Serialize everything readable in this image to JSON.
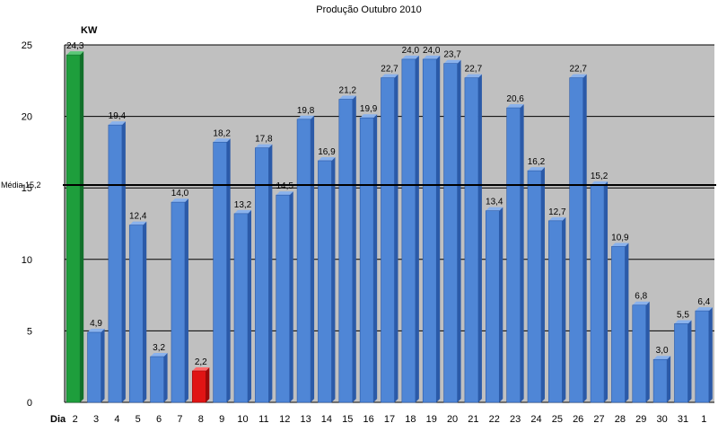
{
  "chart_data": {
    "type": "bar",
    "title": "Produção Outubro 2010",
    "ylabel": "KW",
    "xlabel": "Dia",
    "categories": [
      "2",
      "3",
      "4",
      "5",
      "6",
      "7",
      "8",
      "9",
      "10",
      "11",
      "12",
      "13",
      "14",
      "15",
      "16",
      "17",
      "18",
      "19",
      "20",
      "21",
      "22",
      "23",
      "24",
      "25",
      "26",
      "27",
      "28",
      "29",
      "30",
      "31",
      "1"
    ],
    "values": [
      24.3,
      4.9,
      19.4,
      12.4,
      3.2,
      14.0,
      2.2,
      18.2,
      13.2,
      17.8,
      14.5,
      19.8,
      16.9,
      21.2,
      19.9,
      22.7,
      24.0,
      24.0,
      23.7,
      22.7,
      13.4,
      20.6,
      16.2,
      12.7,
      22.7,
      15.2,
      10.9,
      6.8,
      3.0,
      5.5,
      6.4
    ],
    "data_labels": [
      "24,3",
      "4,9",
      "19,4",
      "12,4",
      "3,2",
      "14,0",
      "2,2",
      "18,2",
      "13,2",
      "17,8",
      "14,5",
      "19,8",
      "16,9",
      "21,2",
      "19,9",
      "22,7",
      "24,0",
      "24,0",
      "23,7",
      "22,7",
      "13,4",
      "20,6",
      "16,2",
      "12,7",
      "22,7",
      "15,2",
      "10,9",
      "6,8",
      "3,0",
      "5,5",
      "6,4"
    ],
    "ylim": [
      0,
      25
    ],
    "yticks": [
      0,
      5,
      10,
      15,
      20,
      25
    ],
    "grid": true,
    "average": {
      "value": 15.2,
      "label": "Média 15,2"
    },
    "colors": {
      "bar": "#4f86d6",
      "bar_side": "#2b5aa8",
      "bar_top": "#8ab2ec",
      "max": "#1e9e3c",
      "max_side": "#11702a",
      "max_top": "#5cc878",
      "min": "#e01414",
      "min_side": "#9a0a0a",
      "min_top": "#ff6a6a",
      "plot_bg": "#c0c0c0",
      "average_line": "#000000"
    },
    "highlight": {
      "max_index": 0,
      "min_index": 6
    }
  }
}
